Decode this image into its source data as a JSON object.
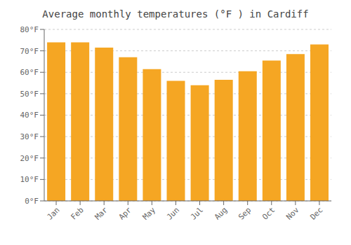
{
  "chart_data": {
    "type": "bar",
    "title": "Average monthly temperatures (°F ) in Cardiff",
    "categories": [
      "Jan",
      "Feb",
      "Mar",
      "Apr",
      "May",
      "Jun",
      "Jul",
      "Aug",
      "Sep",
      "Oct",
      "Nov",
      "Dec"
    ],
    "values": [
      74.0,
      74.0,
      71.5,
      67.0,
      61.5,
      56.0,
      54.0,
      56.5,
      60.5,
      65.5,
      68.5,
      73.0
    ],
    "color": "#F5A623",
    "ylim": [
      0,
      80
    ],
    "yticks": [
      {
        "value": 0,
        "label": "0°F"
      },
      {
        "value": 10,
        "label": "10°F"
      },
      {
        "value": 20,
        "label": "20°F"
      },
      {
        "value": 30,
        "label": "30°F"
      },
      {
        "value": 40,
        "label": "40°F"
      },
      {
        "value": 50,
        "label": "50°F"
      },
      {
        "value": 60,
        "label": "60°F"
      },
      {
        "value": 70,
        "label": "70°F"
      },
      {
        "value": 80,
        "label": "80°F"
      }
    ],
    "grid": true
  }
}
